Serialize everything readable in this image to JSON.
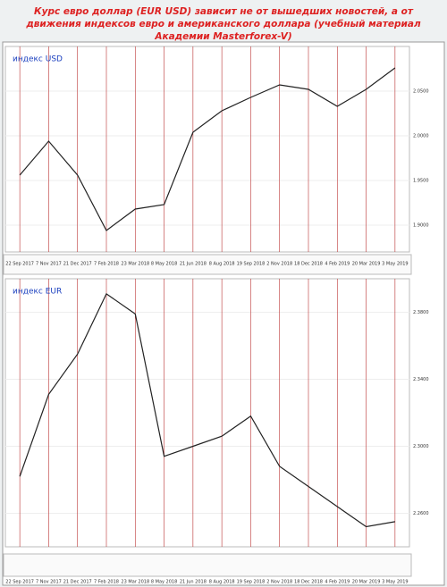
{
  "chart_data": [
    {
      "type": "line",
      "title": "Курс евро доллар (EUR USD) зависит не от вышедших новостей, а от движения индексов евро и американского доллара (учебный материал Академии Masterforex-V)",
      "label": "индекс USD",
      "categories": [
        "22 Sep 2017",
        "7 Nov 2017",
        "21 Dec 2017",
        "7 Feb 2018",
        "23 Mar 2018",
        "8 May 2018",
        "21 Jun 2018",
        "8 Aug 2018",
        "19 Sep 2018",
        "2 Nov 2018",
        "18 Dec 2018",
        "4 Feb 2019",
        "20 Mar 2019",
        "3 May 2019"
      ],
      "values": [
        1.956,
        1.994,
        1.956,
        1.894,
        1.918,
        1.923,
        2.004,
        2.028,
        2.043,
        2.057,
        2.052,
        2.033,
        2.052,
        2.076
      ],
      "color": "#222222",
      "ylim": [
        1.87,
        2.1
      ],
      "yticks": [
        {
          "value": 1.9,
          "label": "1.9000"
        },
        {
          "value": 1.95,
          "label": "1.9500"
        },
        {
          "value": 2.0,
          "label": "2.0000"
        },
        {
          "value": 2.05,
          "label": "2.0500"
        }
      ]
    },
    {
      "type": "line",
      "label": "индекс EUR",
      "categories": [
        "22 Sep 2017",
        "7 Nov 2017",
        "21 Dec 2017",
        "7 Feb 2018",
        "23 Mar 2018",
        "8 May 2018",
        "21 Jun 2018",
        "8 Aug 2018",
        "19 Sep 2018",
        "2 Nov 2018",
        "18 Dec 2018",
        "4 Feb 2019",
        "20 Mar 2019",
        "3 May 2019"
      ],
      "values": [
        2.282,
        2.331,
        2.355,
        2.391,
        2.379,
        2.294,
        2.3,
        2.306,
        2.318,
        2.288,
        2.276,
        2.264,
        2.252,
        2.255
      ],
      "color": "#222222",
      "ylim": [
        2.24,
        2.4
      ],
      "yticks": [
        {
          "value": 2.26,
          "label": "2.2600"
        },
        {
          "value": 2.3,
          "label": "2.3000"
        },
        {
          "value": 2.34,
          "label": "2.3400"
        },
        {
          "value": 2.38,
          "label": "2.3800"
        }
      ]
    }
  ]
}
